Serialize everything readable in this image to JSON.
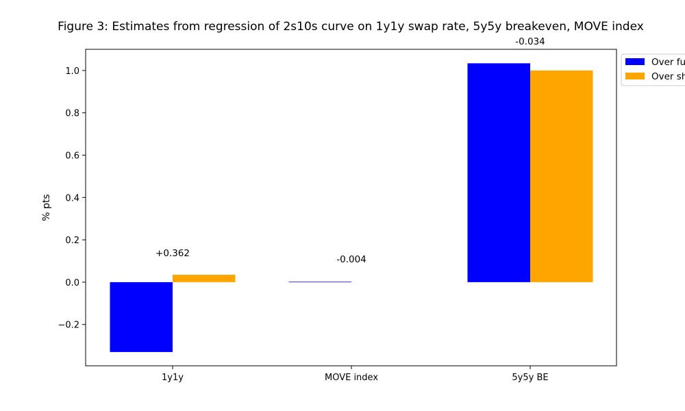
{
  "chart_data": {
    "type": "bar",
    "title": "Figure 3: Estimates from regression of 2s10s curve on 1y1y swap rate, 5y5y breakeven, MOVE index",
    "xlabel": "",
    "ylabel": "% pts",
    "categories": [
      "1y1y",
      "MOVE index",
      "5y5y BE"
    ],
    "series": [
      {
        "name": "Over fu",
        "color": "#0000ff",
        "values": [
          -0.33,
          0.002,
          1.034
        ]
      },
      {
        "name": "Over sh",
        "color": "#ffa500",
        "values": [
          0.035,
          0.0,
          1.0
        ]
      }
    ],
    "annotations": [
      "+0.362",
      "-0.004",
      "-0.034"
    ],
    "ylim": [
      -0.395,
      1.1
    ],
    "yticks": [
      -0.2,
      0.0,
      0.2,
      0.4,
      0.6,
      0.8,
      1.0
    ],
    "ytick_labels": [
      "−0.2",
      "0.0",
      "0.2",
      "0.4",
      "0.6",
      "0.8",
      "1.0"
    ],
    "grid": false,
    "legend": "upper-right-outside"
  }
}
